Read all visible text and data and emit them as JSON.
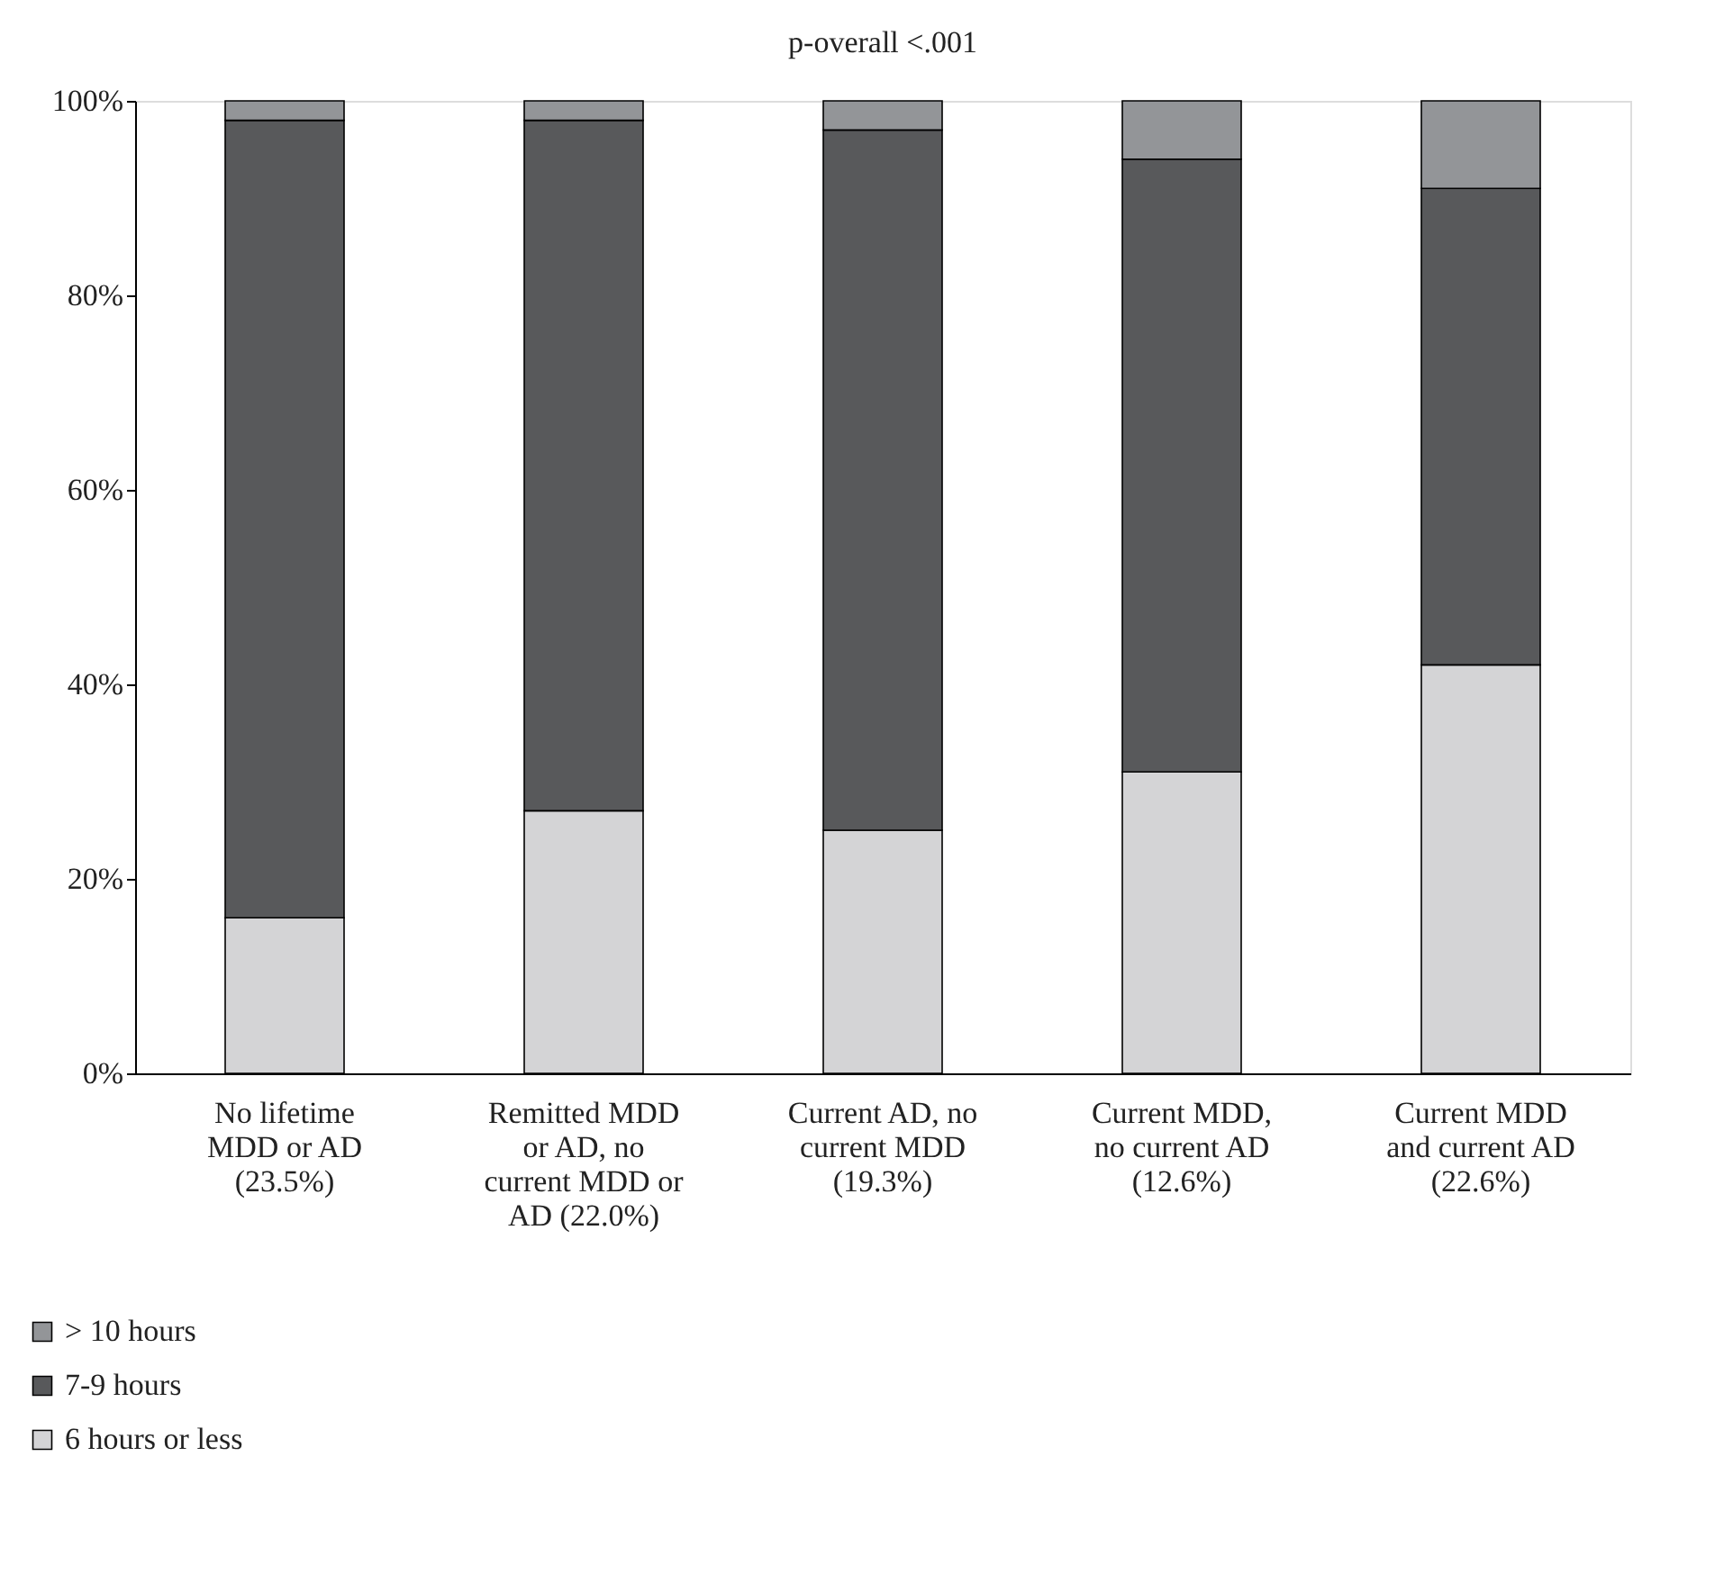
{
  "chart_data": {
    "type": "bar",
    "stacked": true,
    "title": "p-overall <.001",
    "categories": [
      "No lifetime MDD or AD (23.5%)",
      "Remitted MDD or AD, no current MDD or AD (22.0%)",
      "Current AD, no current MDD (19.3%)",
      "Current MDD, no current AD (12.6%)",
      "Current MDD and current AD (22.6%)"
    ],
    "series": [
      {
        "name": "6 hours or less",
        "color": "#d4d4d6",
        "values": [
          16,
          27,
          25,
          31,
          42
        ]
      },
      {
        "name": "7-9 hours",
        "color": "#58595b",
        "values": [
          82,
          71,
          72,
          63,
          49
        ]
      },
      {
        "name": "> 10 hours",
        "color": "#939598",
        "values": [
          2,
          2,
          3,
          6,
          9
        ]
      }
    ],
    "ylim": [
      0,
      100
    ],
    "yticks": [
      {
        "value": 0,
        "label": "0%"
      },
      {
        "value": 20,
        "label": "20%"
      },
      {
        "value": 40,
        "label": "40%"
      },
      {
        "value": 60,
        "label": "60%"
      },
      {
        "value": 80,
        "label": "80%"
      },
      {
        "value": 100,
        "label": "100%"
      }
    ],
    "grid": false,
    "legend": "bottom left"
  }
}
